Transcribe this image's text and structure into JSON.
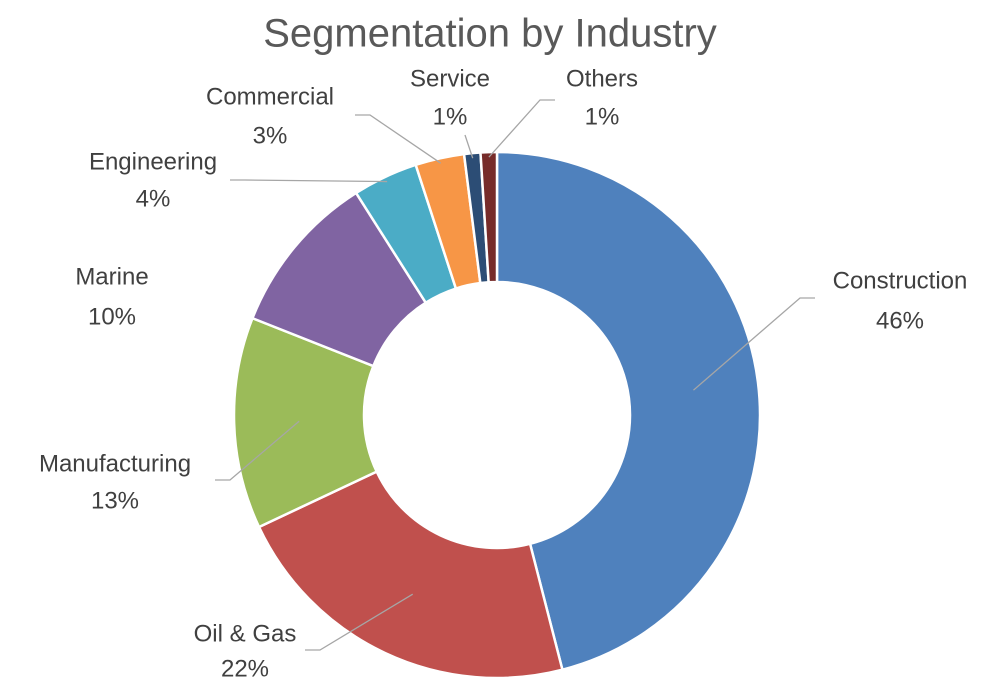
{
  "chart_data": {
    "type": "donut",
    "title": "Segmentation by Industry",
    "categories": [
      "Construction",
      "Oil & Gas",
      "Manufacturing",
      "Marine",
      "Engineering",
      "Commercial",
      "Service",
      "Others"
    ],
    "values": [
      46,
      22,
      13,
      10,
      4,
      3,
      1,
      1
    ],
    "value_labels": [
      "46%",
      "22%",
      "13%",
      "10%",
      "4%",
      "3%",
      "1%",
      "1%"
    ],
    "colors": [
      "#4f81bd",
      "#c0504d",
      "#9bbb59",
      "#8064a2",
      "#4bacc6",
      "#f79646",
      "#2c4d75",
      "#772c2a"
    ]
  }
}
